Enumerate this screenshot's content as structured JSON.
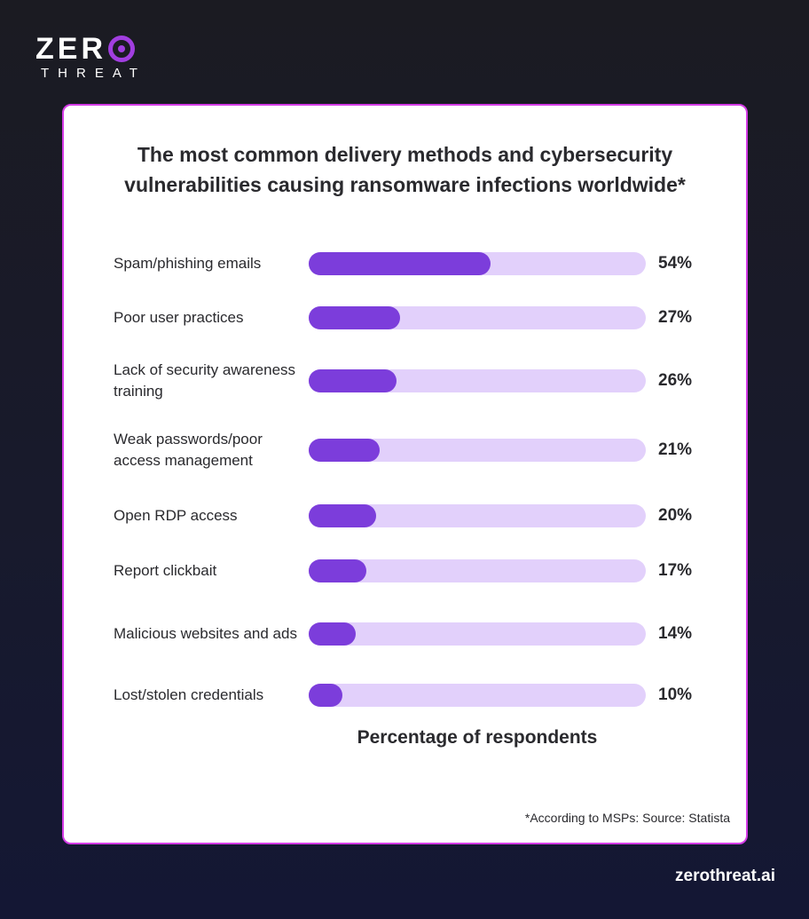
{
  "brand": {
    "logo_text_top": "ZERO",
    "logo_text_bottom": "THREAT",
    "accent": "#a13ee0",
    "website": "zerothreat.ai"
  },
  "chart_data": {
    "type": "bar",
    "orientation": "horizontal",
    "title": "The most common delivery methods and cybersecurity vulnerabilities causing ransomware infections worldwide*",
    "xlabel": "Percentage of respondents",
    "xlim": [
      0,
      100
    ],
    "categories": [
      "Spam/phishing emails",
      "Poor user practices",
      "Lack of security awareness training",
      "Weak passwords/poor access management",
      "Open RDP access",
      "Report clickbait",
      "Malicious websites and ads",
      "Lost/stolen credentials"
    ],
    "values": [
      54,
      27,
      26,
      21,
      20,
      17,
      14,
      10
    ],
    "value_labels": [
      "54%",
      "27%",
      "26%",
      "21%",
      "20%",
      "17%",
      "14%",
      "10%"
    ],
    "bar_color": "#7c3ddb",
    "track_color": "#e2d0fb",
    "footnote": "*According to MSPs: Source: Statista"
  }
}
